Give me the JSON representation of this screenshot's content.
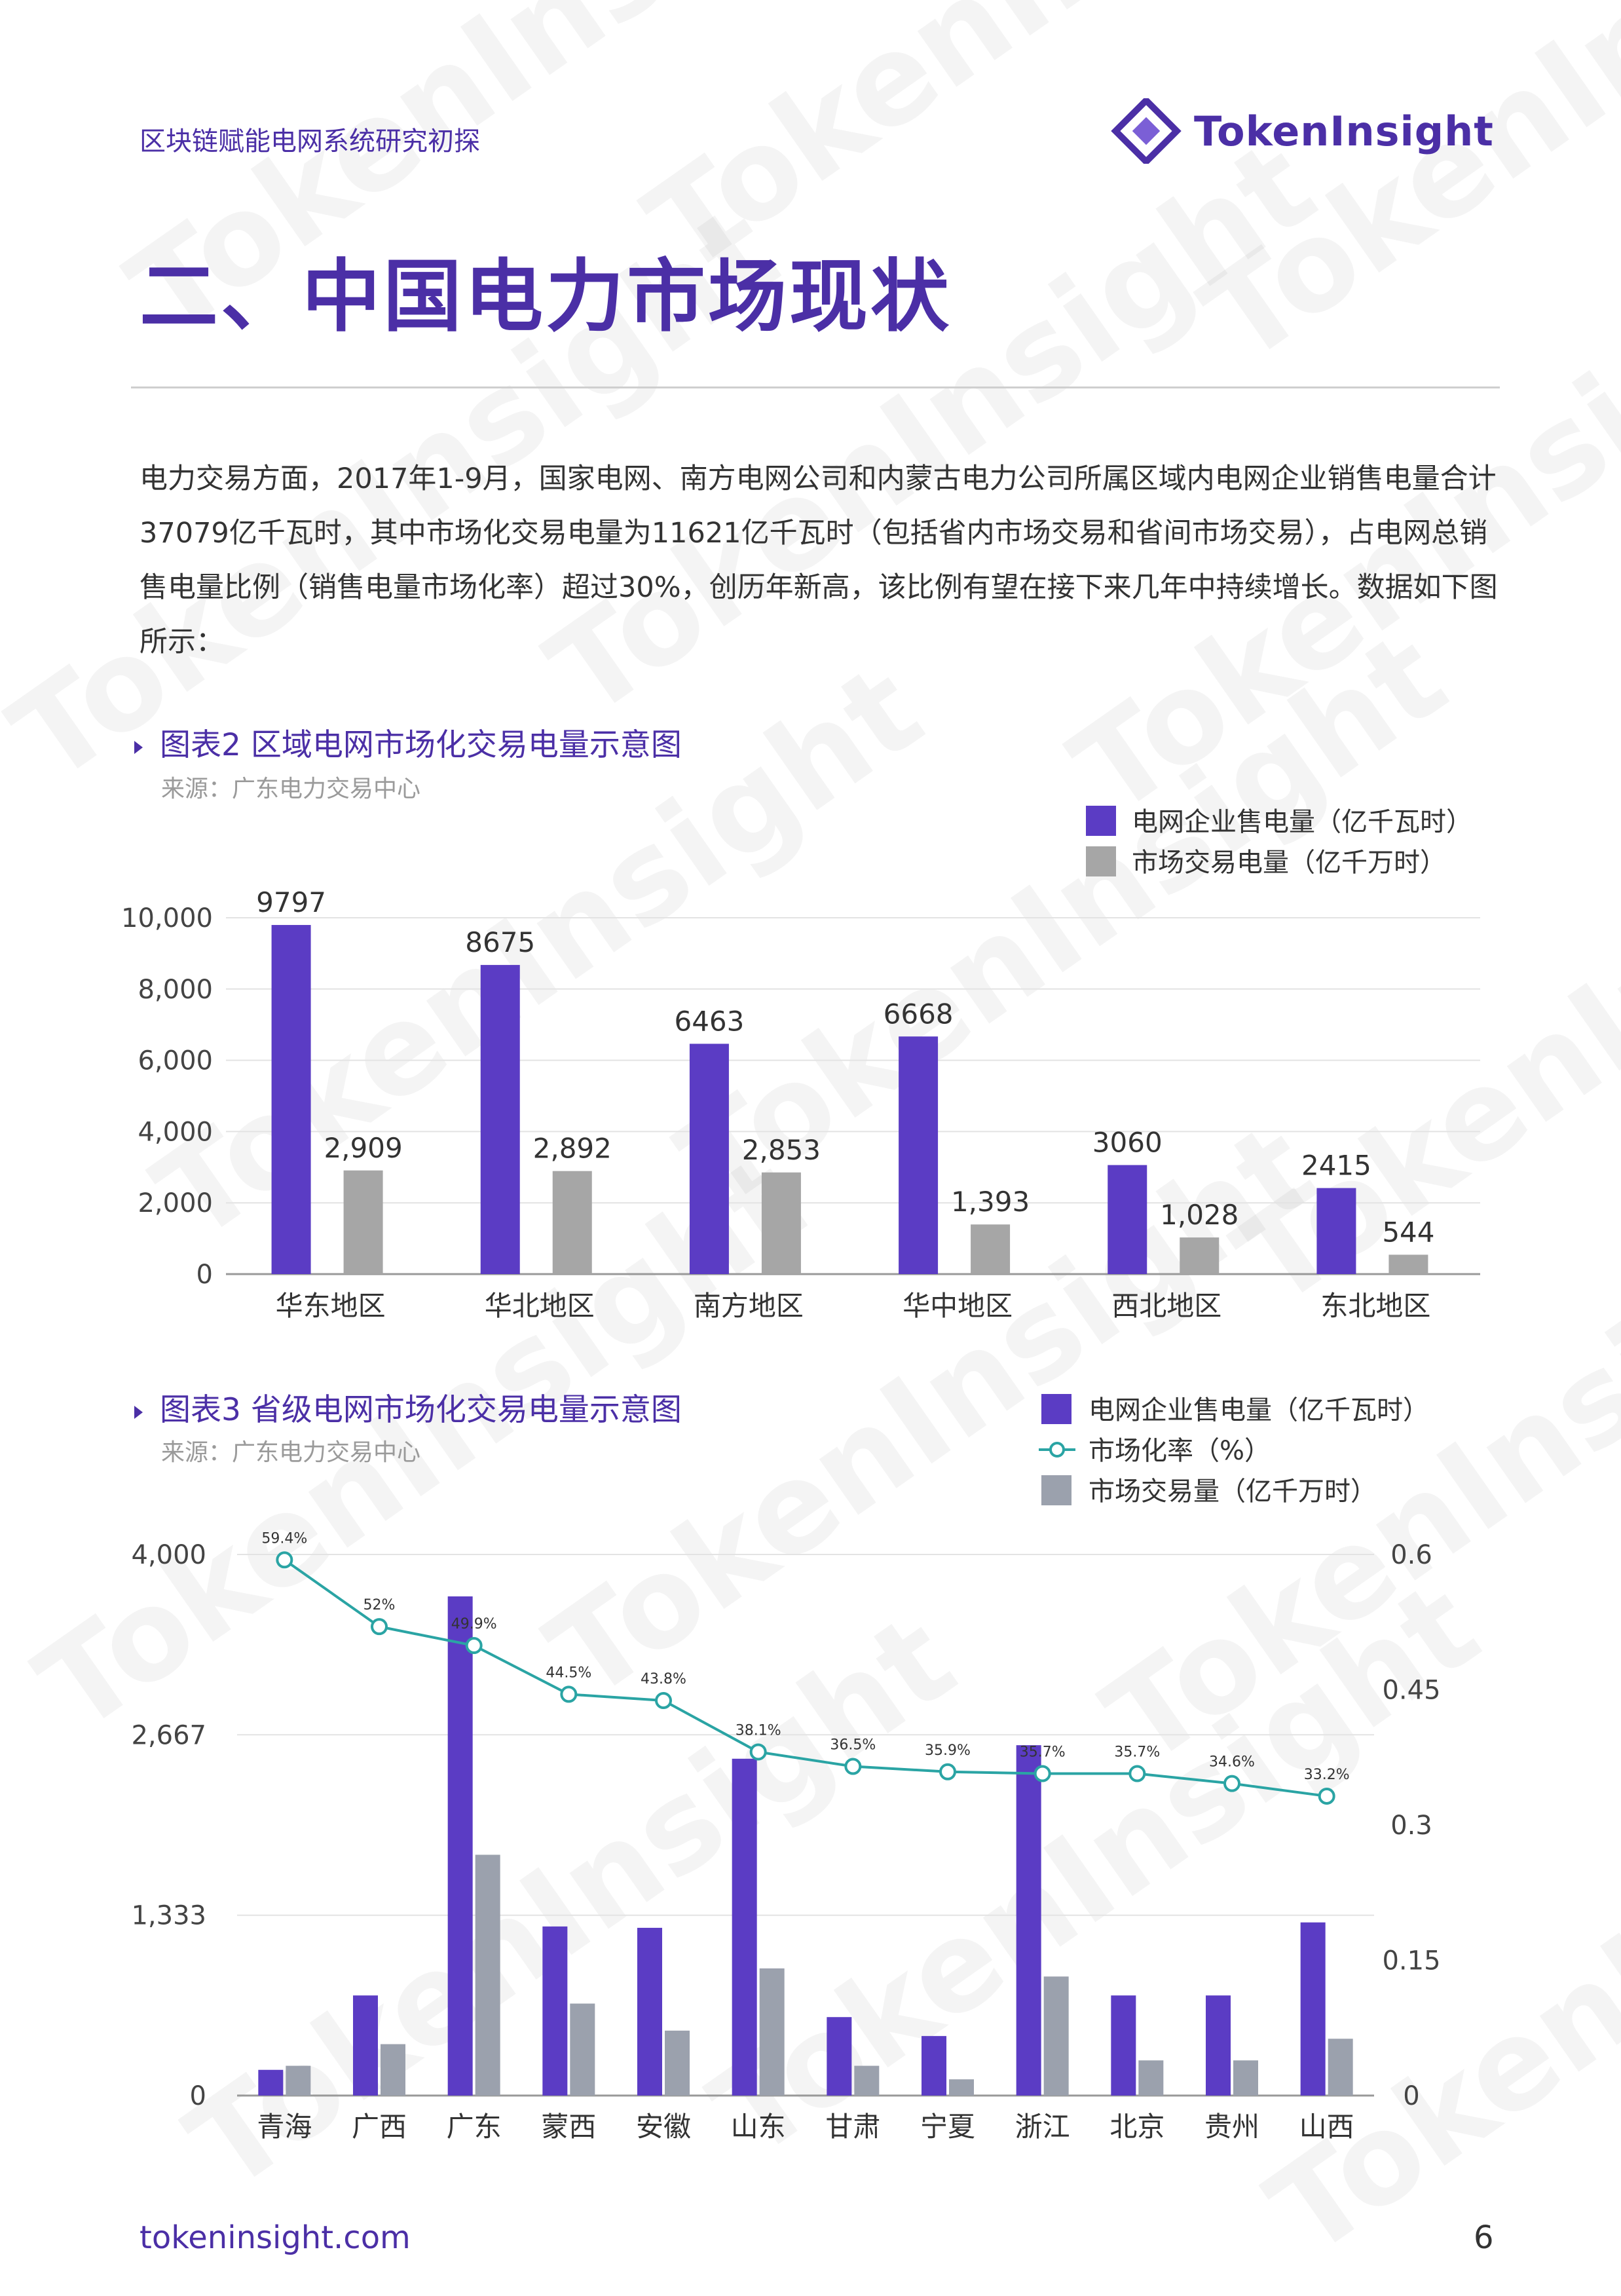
{
  "header": {
    "doc_title": "区块链赋能电网系统研究初探",
    "logo_text": "TokenInsight",
    "logo_icon": "token-insight-logo-icon"
  },
  "section_title": "二、中国电力市场现状",
  "paragraph": "电力交易方面，2017年1-9月，国家电网、南方电网公司和内蒙古电力公司所属区域内电网企业销售电量合计37079亿千瓦时，其中市场化交易电量为11621亿千瓦时（包括省内市场交易和省间市场交易），占电网总销售电量比例（销售电量市场化率）超过30%，创历年新高，该比例有望在接下来几年中持续增长。数据如下图所示：",
  "figure2": {
    "caption": "图表2 区域电网市场化交易电量示意图",
    "source": "来源：广东电力交易中心"
  },
  "figure3": {
    "caption": "图表3 省级电网市场化交易电量示意图",
    "source": "来源：广东电力交易中心"
  },
  "footer": {
    "url": "tokeninsight.com",
    "page": "6"
  },
  "watermark": "TokenInsight",
  "colors": {
    "brand": "#4b2fa6",
    "bar_primary": "#5b3cc4",
    "bar_secondary": "#a6a6a6",
    "bar_secondary_3": "#9ba1ad",
    "line": "#2aa4a4"
  },
  "chart_data": [
    {
      "type": "bar",
      "categories": [
        "华东地区",
        "华北地区",
        "南方地区",
        "华中地区",
        "西北地区",
        "东北地区"
      ],
      "series": [
        {
          "name": "电网企业售电量（亿千瓦时）",
          "values": [
            9797,
            8675,
            6463,
            6668,
            3060,
            2415
          ],
          "labels": [
            "9797",
            "8675",
            "6463",
            "6668",
            "3060",
            "2415"
          ]
        },
        {
          "name": "市场交易电量（亿千万时）",
          "values": [
            2909,
            2892,
            2853,
            1393,
            1028,
            544
          ],
          "labels": [
            "2,909",
            "2,892",
            "2,853",
            "1,393",
            "1,028",
            "544"
          ]
        }
      ],
      "y_ticks": [
        "10,000",
        "8,000",
        "6,000",
        "4,000",
        "2,000",
        "0"
      ],
      "ylim": [
        0,
        10000
      ],
      "grid": true,
      "legend": "top-right"
    },
    {
      "type": "bar",
      "categories": [
        "青海",
        "广西",
        "广东",
        "蒙西",
        "安徽",
        "山东",
        "甘肃",
        "宁夏",
        "浙江",
        "北京",
        "贵州",
        "山西"
      ],
      "series": [
        {
          "name": "电网企业售电量（亿千瓦时）",
          "values": [
            190,
            740,
            3690,
            1250,
            1240,
            2490,
            580,
            440,
            2590,
            740,
            740,
            1280
          ]
        },
        {
          "name": "市场化率（%）",
          "type": "line",
          "axis": "right",
          "values": [
            0.594,
            0.52,
            0.499,
            0.445,
            0.438,
            0.381,
            0.365,
            0.359,
            0.357,
            0.357,
            0.346,
            0.332
          ],
          "labels": [
            "59.4%",
            "52%",
            "49.9%",
            "44.5%",
            "43.8%",
            "38.1%",
            "36.5%",
            "35.9%",
            "35.7%",
            "35.7%",
            "34.6%",
            "33.2%"
          ]
        },
        {
          "name": "市场交易量（亿千万时）",
          "values": [
            220,
            380,
            1780,
            680,
            480,
            940,
            220,
            120,
            880,
            260,
            260,
            420
          ]
        }
      ],
      "y_ticks": [
        "4,000",
        "2,667",
        "1,333",
        "0"
      ],
      "y2_ticks": [
        "0.6",
        "0.45",
        "0.3",
        "0.15",
        "0"
      ],
      "ylim": [
        0,
        4000
      ],
      "y2lim": [
        0,
        0.6
      ],
      "grid": true,
      "legend": "top-right"
    }
  ]
}
